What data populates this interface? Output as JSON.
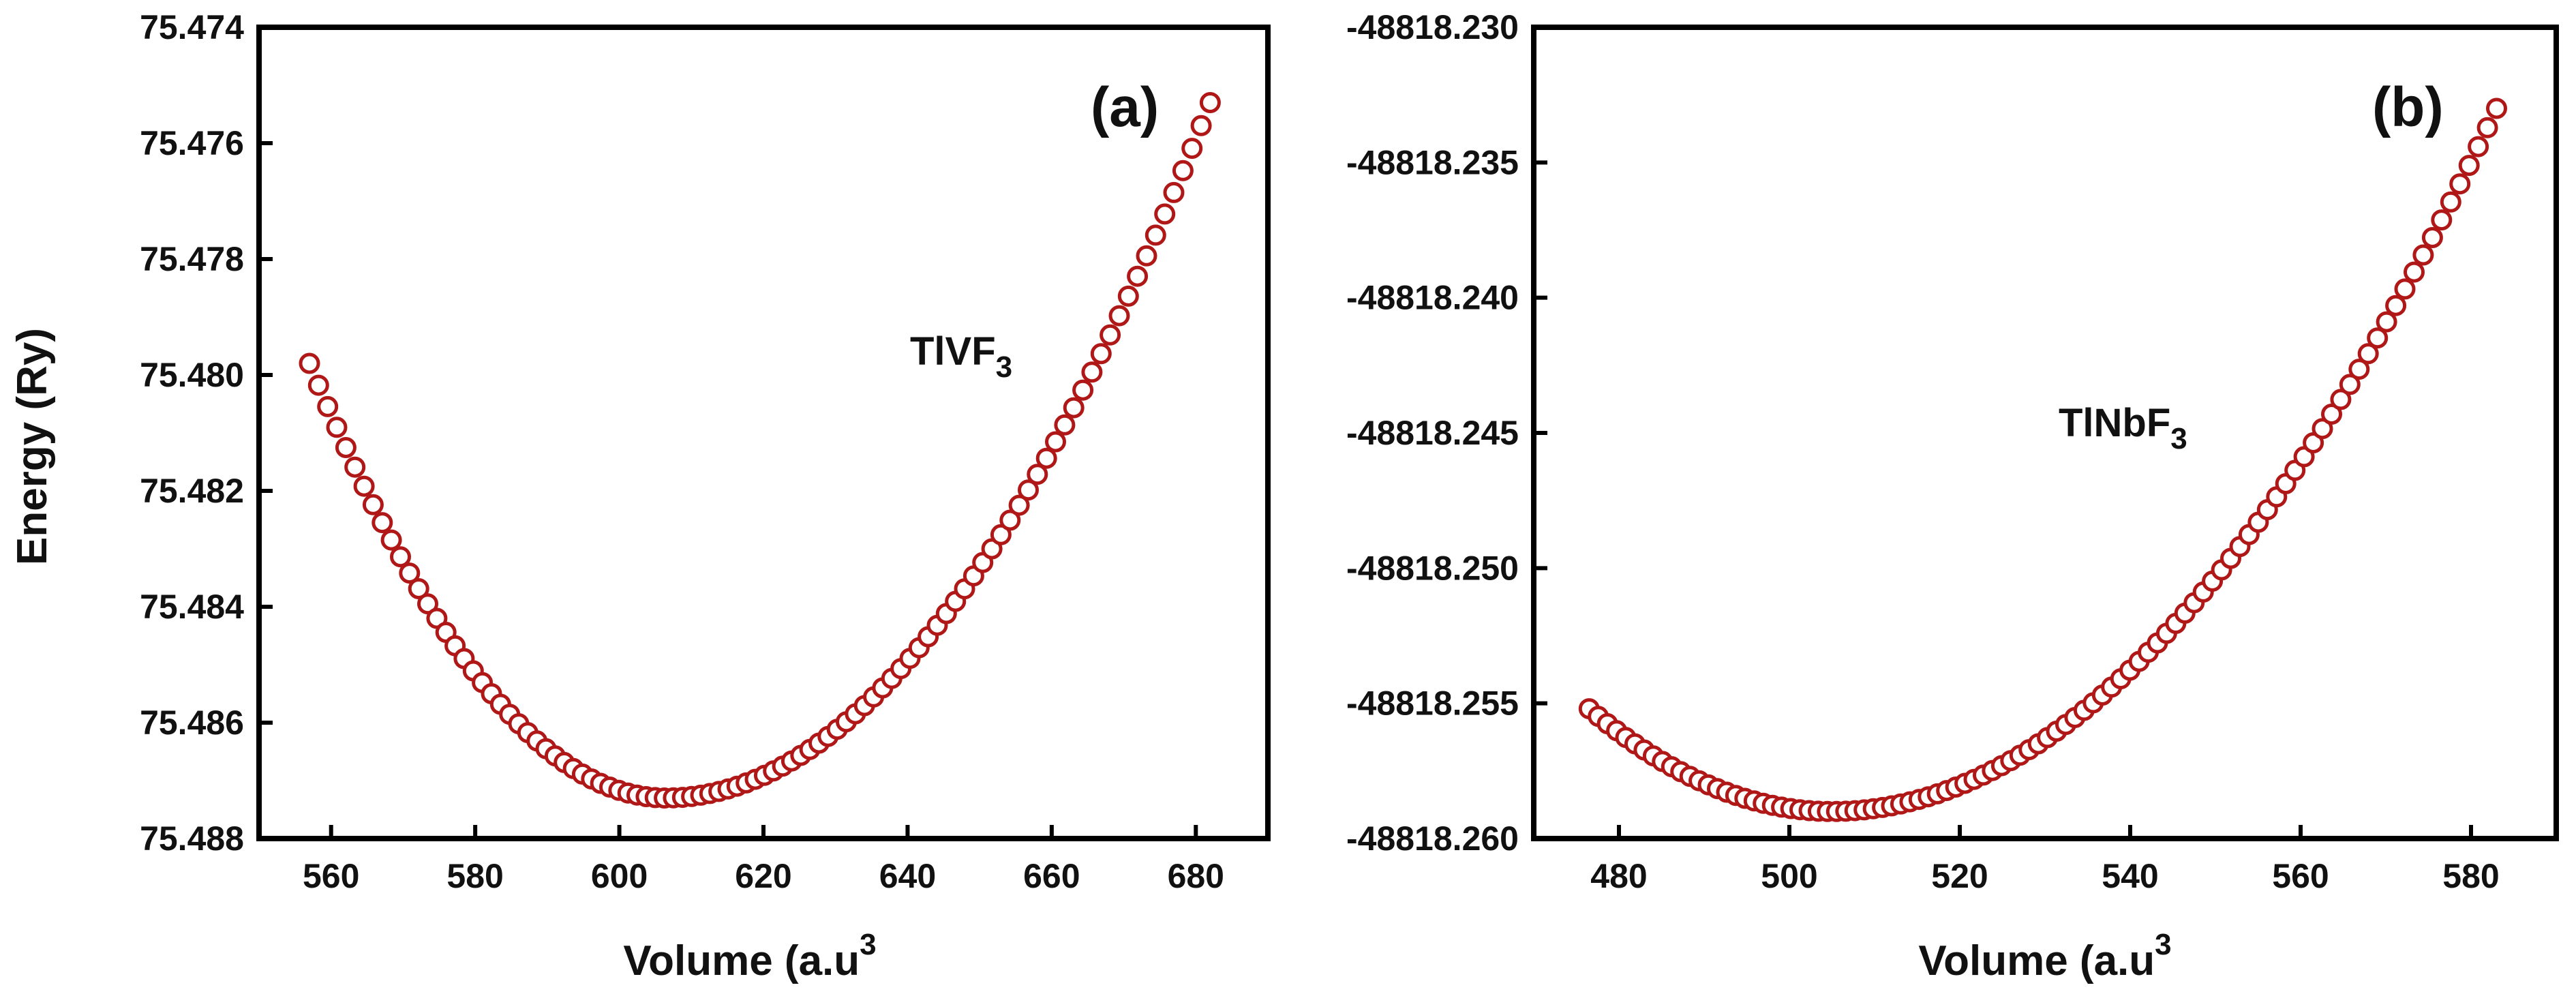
{
  "chart_data": [
    {
      "type": "scatter",
      "panel_label": "(a)",
      "compound": {
        "main": "TlVF",
        "sub": "3"
      },
      "xlabel": {
        "main": "Volume (a.u",
        "sup": "3"
      },
      "ylabel": "Energy (Ry)",
      "xlim": [
        550,
        690
      ],
      "ylim": [
        75.474,
        75.488
      ],
      "y_reversed": true,
      "xticks": [
        560,
        580,
        600,
        620,
        640,
        660,
        680
      ],
      "yticks": [
        75.474,
        75.476,
        75.478,
        75.48,
        75.482,
        75.484,
        75.486,
        75.488
      ],
      "xtick_labels": [
        "560",
        "580",
        "600",
        "620",
        "640",
        "660",
        "680"
      ],
      "ytick_labels": [
        "75.474",
        "75.476",
        "75.478",
        "75.480",
        "75.482",
        "75.484",
        "75.486",
        "75.488"
      ],
      "series": [
        {
          "name": "TlVF3",
          "marker": "open-circle",
          "color": "#b01818",
          "x_start": 557,
          "x_end": 682,
          "n_points": 100,
          "x_min_energy": 606.5,
          "y_at_min": 75.4873,
          "y_at_start": 75.4798,
          "y_at_end": 75.4753
        }
      ]
    },
    {
      "type": "scatter",
      "panel_label": "(b)",
      "compound": {
        "main": "TlNbF",
        "sub": "3"
      },
      "xlabel": {
        "main": "Volume (a.u",
        "sup": "3"
      },
      "ylabel": "",
      "xlim": [
        470,
        590
      ],
      "ylim": [
        -48818.23,
        -48818.26
      ],
      "y_reversed": false,
      "xticks": [
        480,
        500,
        520,
        540,
        560,
        580
      ],
      "yticks": [
        -48818.23,
        -48818.235,
        -48818.24,
        -48818.245,
        -48818.25,
        -48818.255,
        -48818.26
      ],
      "xtick_labels": [
        "480",
        "500",
        "520",
        "540",
        "560",
        "580"
      ],
      "ytick_labels": [
        "-48818.230",
        "-48818.235",
        "-48818.240",
        "-48818.245",
        "-48818.250",
        "-48818.255",
        "-48818.260"
      ],
      "series": [
        {
          "name": "TlNbF3",
          "marker": "open-circle",
          "color": "#b01818",
          "x_start": 476.5,
          "x_end": 583,
          "n_points": 100,
          "x_min_energy": 505,
          "y_at_min": -48818.259,
          "y_at_start": -48818.2552,
          "y_at_end": -48818.233
        }
      ]
    }
  ]
}
